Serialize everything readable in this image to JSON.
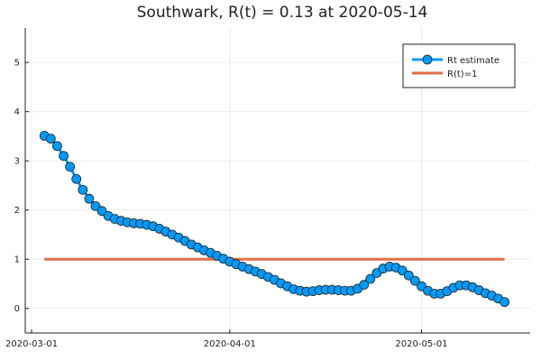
{
  "chart_data": {
    "type": "line",
    "title": "Southwark, R(t) = 0.13 at 2020-05-14",
    "xlabel": "",
    "ylabel": "",
    "x_range": [
      "2020-02-29",
      "2020-05-18"
    ],
    "ylim": [
      -0.5,
      5.7
    ],
    "grid": true,
    "legend_position": "top-right",
    "x_ticks": [
      "2020-03-01",
      "2020-04-01",
      "2020-05-01"
    ],
    "y_ticks": [
      0,
      1,
      2,
      3,
      4,
      5
    ],
    "series": [
      {
        "name": "Rt estimate",
        "color": "#009af9",
        "marker": "circle",
        "x": [
          "2020-03-03",
          "2020-03-04",
          "2020-03-05",
          "2020-03-06",
          "2020-03-07",
          "2020-03-08",
          "2020-03-09",
          "2020-03-10",
          "2020-03-11",
          "2020-03-12",
          "2020-03-13",
          "2020-03-14",
          "2020-03-15",
          "2020-03-16",
          "2020-03-17",
          "2020-03-18",
          "2020-03-19",
          "2020-03-20",
          "2020-03-21",
          "2020-03-22",
          "2020-03-23",
          "2020-03-24",
          "2020-03-25",
          "2020-03-26",
          "2020-03-27",
          "2020-03-28",
          "2020-03-29",
          "2020-03-30",
          "2020-03-31",
          "2020-04-01",
          "2020-04-02",
          "2020-04-03",
          "2020-04-04",
          "2020-04-05",
          "2020-04-06",
          "2020-04-07",
          "2020-04-08",
          "2020-04-09",
          "2020-04-10",
          "2020-04-11",
          "2020-04-12",
          "2020-04-13",
          "2020-04-14",
          "2020-04-15",
          "2020-04-16",
          "2020-04-17",
          "2020-04-18",
          "2020-04-19",
          "2020-04-20",
          "2020-04-21",
          "2020-04-22",
          "2020-04-23",
          "2020-04-24",
          "2020-04-25",
          "2020-04-26",
          "2020-04-27",
          "2020-04-28",
          "2020-04-29",
          "2020-04-30",
          "2020-05-01",
          "2020-05-02",
          "2020-05-03",
          "2020-05-04",
          "2020-05-05",
          "2020-05-06",
          "2020-05-07",
          "2020-05-08",
          "2020-05-09",
          "2020-05-10",
          "2020-05-11",
          "2020-05-12",
          "2020-05-13",
          "2020-05-14"
        ],
        "y": [
          3.51,
          3.45,
          3.3,
          3.1,
          2.88,
          2.63,
          2.41,
          2.23,
          2.08,
          1.98,
          1.88,
          1.82,
          1.78,
          1.75,
          1.73,
          1.72,
          1.7,
          1.67,
          1.62,
          1.56,
          1.5,
          1.44,
          1.37,
          1.3,
          1.24,
          1.18,
          1.13,
          1.07,
          1.01,
          0.95,
          0.9,
          0.85,
          0.8,
          0.75,
          0.7,
          0.64,
          0.58,
          0.51,
          0.45,
          0.39,
          0.36,
          0.34,
          0.35,
          0.37,
          0.38,
          0.38,
          0.37,
          0.36,
          0.36,
          0.4,
          0.48,
          0.6,
          0.72,
          0.81,
          0.85,
          0.83,
          0.77,
          0.67,
          0.56,
          0.45,
          0.36,
          0.3,
          0.3,
          0.35,
          0.42,
          0.47,
          0.47,
          0.43,
          0.37,
          0.31,
          0.26,
          0.2,
          0.13
        ]
      },
      {
        "name": "R(t)=1",
        "color": "#e26f46",
        "marker": "none",
        "x": [
          "2020-03-03",
          "2020-05-14"
        ],
        "y": [
          1,
          1
        ]
      }
    ]
  }
}
